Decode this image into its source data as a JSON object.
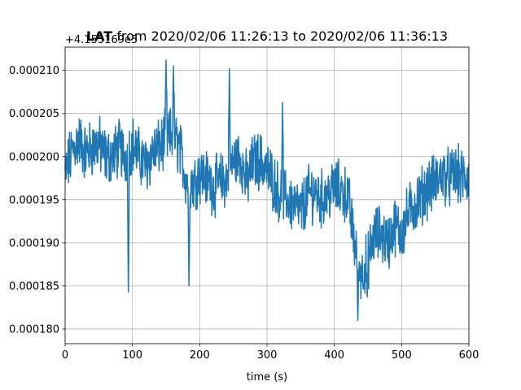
{
  "chart_data": {
    "type": "line",
    "title": "LAT from 2020/02/06 11:26:13 to 2020/02/06 11:36:13",
    "title_bold_part": "LAT",
    "title_rest_part": " from 2020/02/06 11:26:13 to 2020/02/06 11:36:13",
    "xlabel": "time (s)",
    "ylabel": "",
    "y_offset_label": "+4.155169e5",
    "xlim": [
      0,
      600
    ],
    "ylim": [
      0.0001783,
      0.0002127
    ],
    "x_ticks": [
      0,
      100,
      200,
      300,
      400,
      500,
      600
    ],
    "x_tick_labels": [
      "0",
      "100",
      "200",
      "300",
      "400",
      "500",
      "600"
    ],
    "y_ticks": [
      0.00018,
      0.000185,
      0.00019,
      0.000195,
      0.0002,
      0.000205,
      0.00021
    ],
    "y_tick_labels": [
      "0.000180",
      "0.000185",
      "0.000190",
      "0.000195",
      "0.000200",
      "0.000205",
      "0.000210"
    ],
    "grid": true,
    "line_color": "#1f77b4",
    "series_trend": {
      "x": [
        0,
        10,
        20,
        30,
        40,
        50,
        60,
        70,
        80,
        90,
        100,
        110,
        120,
        130,
        140,
        150,
        160,
        170,
        180,
        190,
        200,
        210,
        220,
        230,
        240,
        250,
        260,
        270,
        280,
        290,
        300,
        310,
        320,
        330,
        340,
        350,
        360,
        370,
        380,
        390,
        400,
        410,
        420,
        430,
        440,
        450,
        460,
        470,
        480,
        490,
        500,
        510,
        520,
        530,
        540,
        550,
        560,
        570,
        580,
        590,
        600
      ],
      "y": [
        0.000198,
        0.0002005,
        0.000202,
        0.0002005,
        0.000201,
        0.0002015,
        0.0002,
        0.0002,
        0.000201,
        0.0002,
        0.0002015,
        0.0002,
        0.000199,
        0.0002005,
        0.000201,
        0.000202,
        0.0002025,
        0.000201,
        0.0001975,
        0.000197,
        0.000198,
        0.0001975,
        0.0001965,
        0.000197,
        0.0001975,
        0.0001995,
        0.0002,
        0.000197,
        0.0001995,
        0.0001995,
        0.0001985,
        0.000197,
        0.0001955,
        0.000195,
        0.0001945,
        0.0001935,
        0.0001955,
        0.000196,
        0.000195,
        0.0001955,
        0.0001965,
        0.000196,
        0.0001955,
        0.00019,
        0.0001865,
        0.000188,
        0.000191,
        0.000191,
        0.00019,
        0.000192,
        0.000191,
        0.0001935,
        0.0001945,
        0.0001955,
        0.0001965,
        0.000197,
        0.000198,
        0.0001975,
        0.000198,
        0.0001975,
        0.0001975
      ]
    },
    "noise_amplitude": 2.8e-06,
    "dips": [
      {
        "x": 94,
        "y": 0.0001843
      },
      {
        "x": 184,
        "y": 0.000185
      },
      {
        "x": 435,
        "y": 0.000181
      },
      {
        "x": 449,
        "y": 0.0001837
      }
    ],
    "spikes": [
      {
        "x": 150,
        "y": 0.0002112
      },
      {
        "x": 161,
        "y": 0.0002105
      },
      {
        "x": 244,
        "y": 0.0002102
      },
      {
        "x": 323,
        "y": 0.0002063
      }
    ]
  }
}
